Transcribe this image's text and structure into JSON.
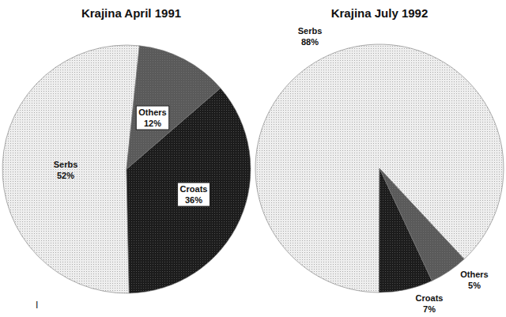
{
  "chart_data": [
    {
      "type": "pie",
      "title": "Krajina April 1991",
      "categories": [
        "Serbs",
        "Croats",
        "Others"
      ],
      "values": [
        52,
        36,
        12
      ],
      "value_labels": [
        "52%",
        "36%",
        "12%"
      ],
      "colors": [
        "#eeeeee",
        "#1c1c1c",
        "#5a5a5a"
      ],
      "data_labels": true,
      "annotation": "I"
    },
    {
      "type": "pie",
      "title": "Krajina July 1992",
      "categories": [
        "Serbs",
        "Croats",
        "Others"
      ],
      "values": [
        88,
        7,
        5
      ],
      "value_labels": [
        "88%",
        "7%",
        "5%"
      ],
      "colors": [
        "#eeeeee",
        "#1c1c1c",
        "#5a5a5a"
      ],
      "data_labels": true
    }
  ]
}
